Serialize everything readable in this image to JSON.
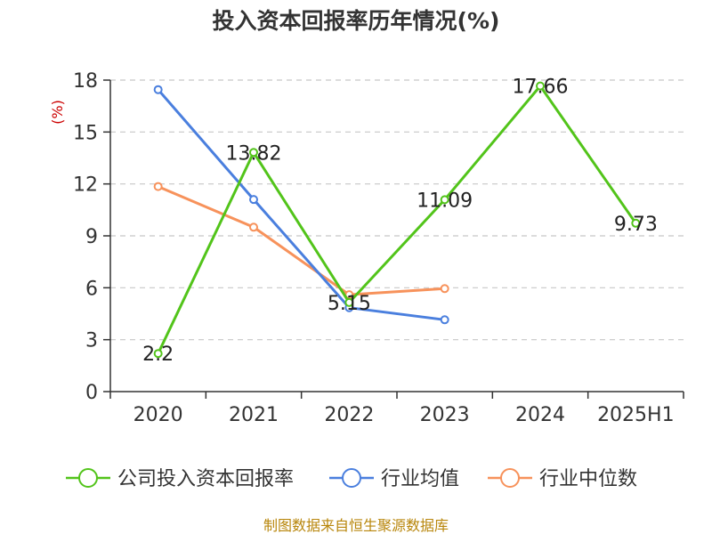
{
  "chart_data": {
    "type": "line",
    "title": "投入资本回报率历年情况(%)",
    "ylabel": "(%)",
    "categories": [
      "2020",
      "2021",
      "2022",
      "2023",
      "2024",
      "2025H1"
    ],
    "ylim": [
      0,
      18
    ],
    "yticks": [
      0,
      3,
      6,
      9,
      12,
      15,
      18
    ],
    "grid": true,
    "legend_position": "bottom",
    "series": [
      {
        "name": "公司投入资本回报率",
        "color": "#52c41a",
        "values": [
          2.2,
          13.82,
          5.15,
          11.09,
          17.66,
          9.73
        ],
        "labels": [
          "2.2",
          "13.82",
          "5.15",
          "11.09",
          "17.66",
          "9.73"
        ]
      },
      {
        "name": "行业均值",
        "color": "#4a7fde",
        "values": [
          17.45,
          11.1,
          4.85,
          4.15,
          null,
          null
        ]
      },
      {
        "name": "行业中位数",
        "color": "#f7925b",
        "values": [
          11.85,
          9.5,
          5.6,
          5.95,
          null,
          null
        ]
      }
    ]
  },
  "source": "制图数据来自恒生聚源数据库"
}
